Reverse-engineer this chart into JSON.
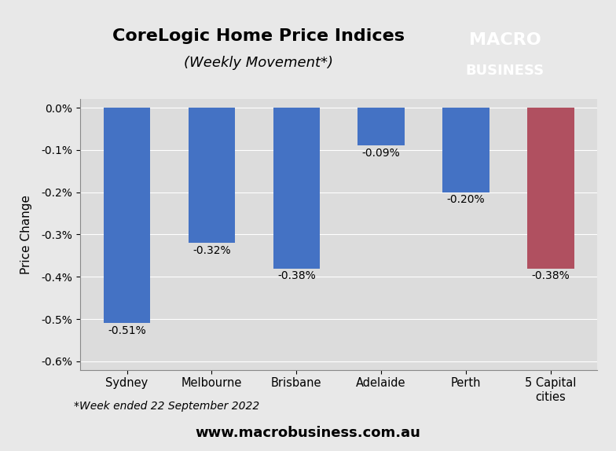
{
  "title_line1": "CoreLogic Home Price Indices",
  "title_line2": "(Weekly Movement*)",
  "categories": [
    "Sydney",
    "Melbourne",
    "Brisbane",
    "Adelaide",
    "Perth",
    "5 Capital\ncities"
  ],
  "values": [
    -0.51,
    -0.32,
    -0.38,
    -0.09,
    -0.2,
    -0.38
  ],
  "labels": [
    "-0.51%",
    "-0.32%",
    "-0.38%",
    "-0.09%",
    "-0.20%",
    "-0.38%"
  ],
  "bar_colors": [
    "#4472C4",
    "#4472C4",
    "#4472C4",
    "#4472C4",
    "#4472C4",
    "#B05060"
  ],
  "ylabel": "Price Change",
  "ylim_min": -0.62,
  "ylim_max": 0.02,
  "yticks": [
    0.0,
    -0.1,
    -0.2,
    -0.3,
    -0.4,
    -0.5,
    -0.6
  ],
  "ytick_labels": [
    "0.0%",
    "-0.1%",
    "-0.2%",
    "-0.3%",
    "-0.4%",
    "-0.5%",
    "-0.6%"
  ],
  "footnote": "*Week ended 22 September 2022",
  "website": "www.macrobusiness.com.au",
  "background_color": "#E8E8E8",
  "plot_bg_color": "#DCDCDC",
  "logo_bg_color": "#C0392B",
  "logo_text_line1": "MACRO",
  "logo_text_line2": "BUSINESS"
}
